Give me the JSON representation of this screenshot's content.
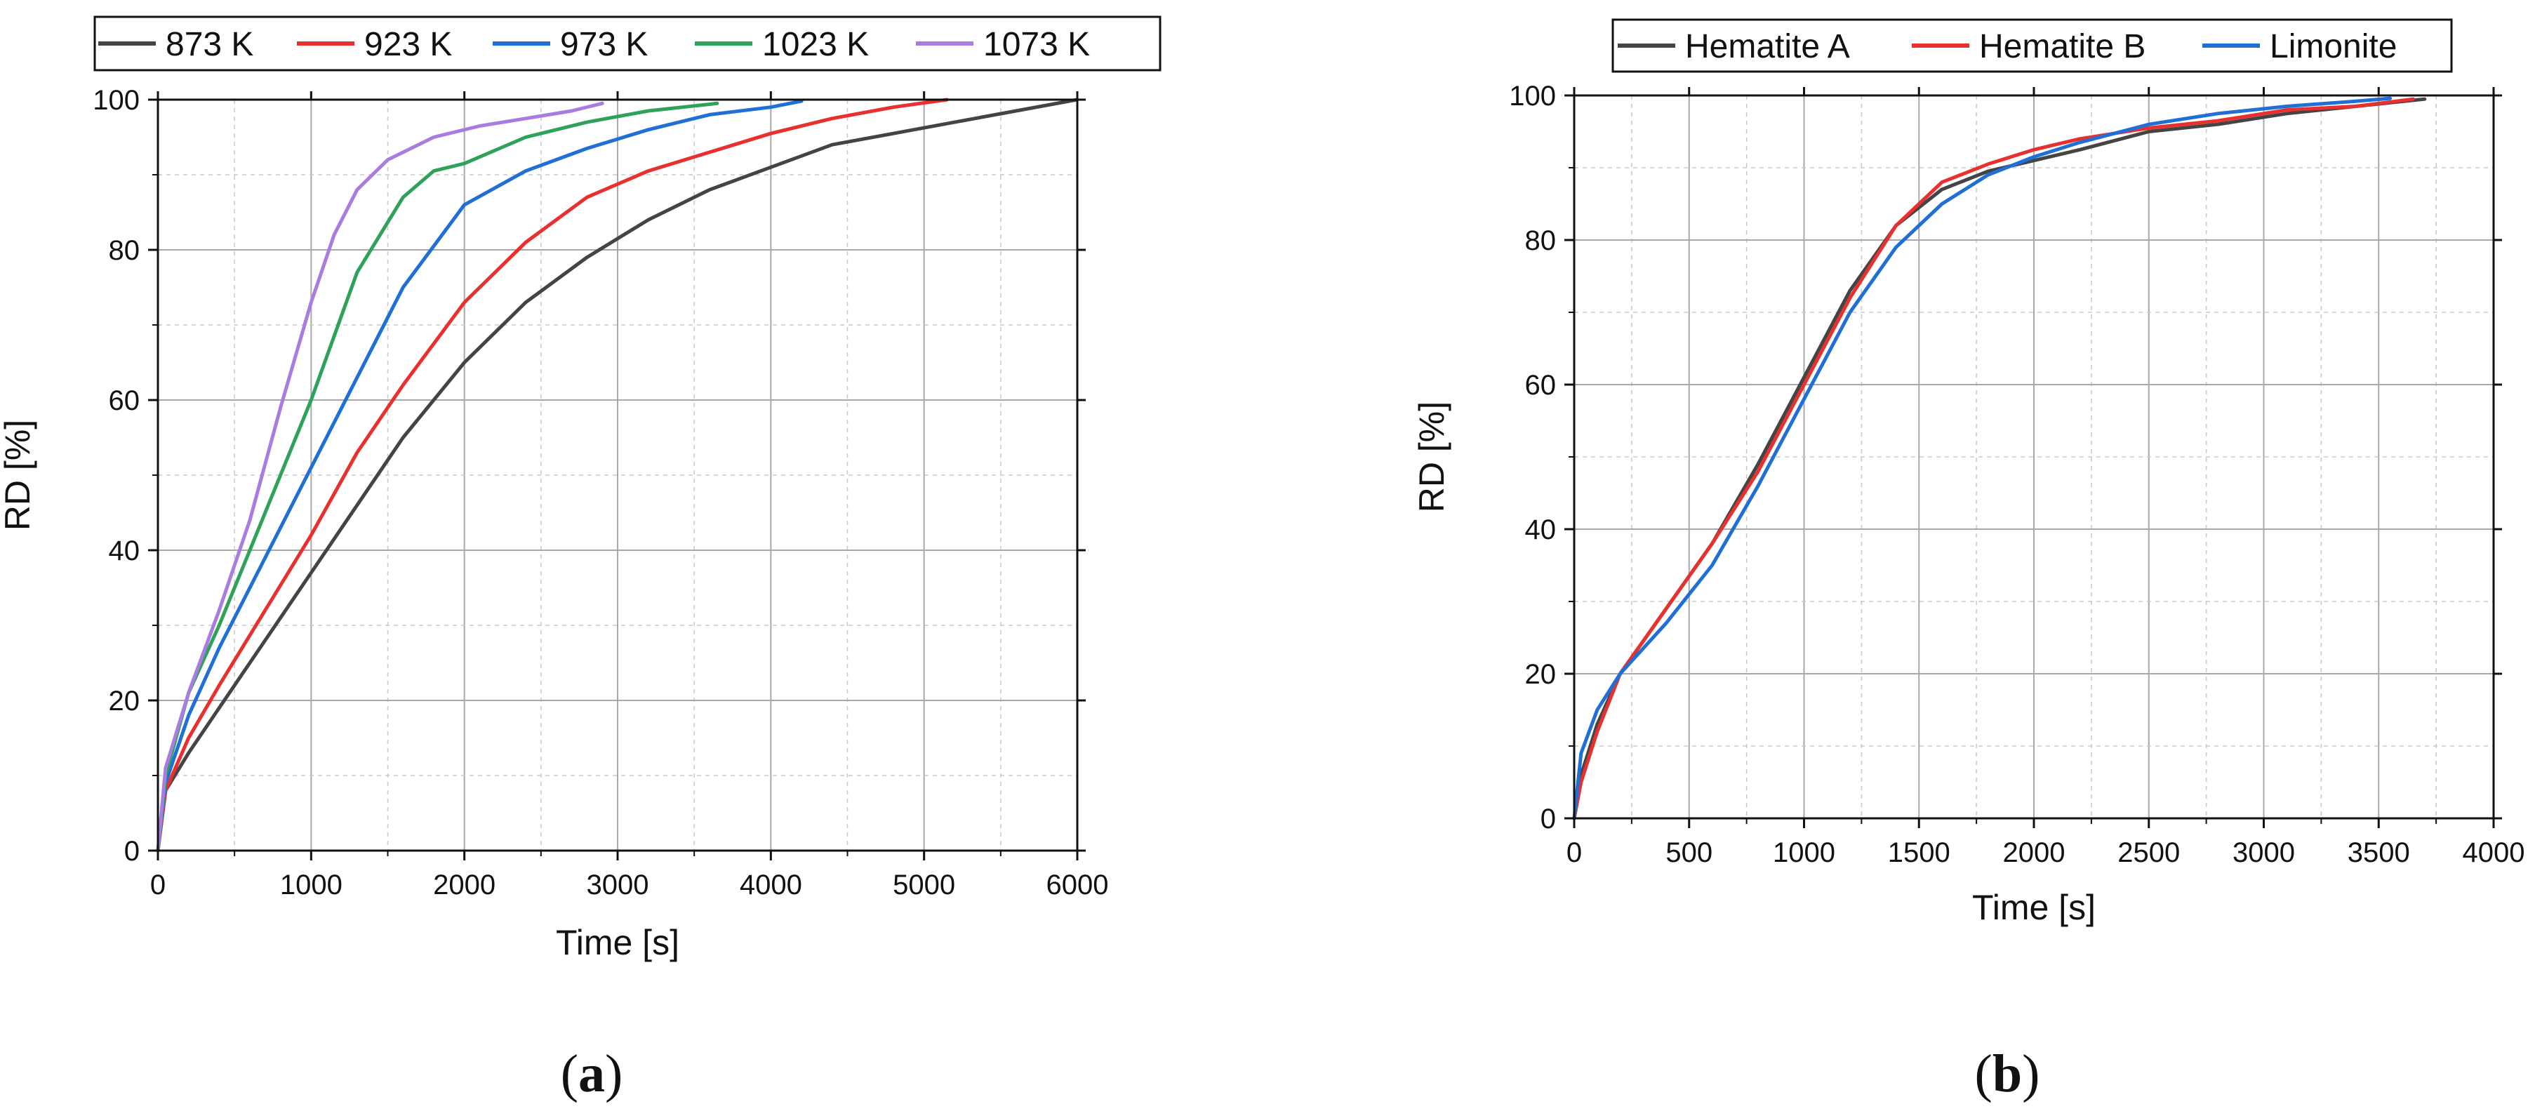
{
  "chart_data": [
    {
      "type": "line",
      "panel_label": {
        "open": "(",
        "letter": "a",
        "close": ")"
      },
      "xlabel": "Time [s]",
      "ylabel": "RD [%]",
      "xlim": [
        0,
        6000
      ],
      "ylim": [
        0,
        100
      ],
      "xticks": [
        0,
        1000,
        2000,
        3000,
        4000,
        5000,
        6000
      ],
      "yticks": [
        0,
        20,
        40,
        60,
        80,
        100
      ],
      "grid": true,
      "legend_position": "top",
      "series": [
        {
          "name": "873 K",
          "color": "#444444",
          "x": [
            0,
            50,
            200,
            400,
            700,
            1000,
            1300,
            1600,
            2000,
            2400,
            2800,
            3200,
            3600,
            4000,
            4400,
            4800,
            5200,
            5600,
            6000
          ],
          "y": [
            0,
            8,
            13,
            19,
            28,
            37,
            46,
            55,
            65,
            73,
            79,
            84,
            88,
            91,
            94,
            95.5,
            97,
            98.5,
            100
          ]
        },
        {
          "name": "923 K",
          "color": "#e8302e",
          "x": [
            0,
            50,
            200,
            400,
            700,
            1000,
            1300,
            1600,
            2000,
            2400,
            2800,
            3200,
            3600,
            4000,
            4400,
            4800,
            5150
          ],
          "y": [
            0,
            8,
            15,
            22,
            32,
            42,
            53,
            62,
            73,
            81,
            87,
            90.5,
            93,
            95.5,
            97.5,
            99,
            100
          ]
        },
        {
          "name": "973 K",
          "color": "#1f6fd6",
          "x": [
            0,
            50,
            200,
            400,
            700,
            1000,
            1300,
            1600,
            2000,
            2400,
            2800,
            3200,
            3600,
            4000,
            4200
          ],
          "y": [
            0,
            9,
            18,
            27,
            39,
            51,
            63,
            75,
            86,
            90.5,
            93.5,
            96,
            98,
            99,
            99.8
          ]
        },
        {
          "name": "1023 K",
          "color": "#2fa25a",
          "x": [
            0,
            50,
            200,
            400,
            700,
            1000,
            1300,
            1600,
            1800,
            2000,
            2400,
            2800,
            3200,
            3650
          ],
          "y": [
            0,
            10,
            21,
            30,
            45,
            60,
            77,
            87,
            90.5,
            91.5,
            95,
            97,
            98.5,
            99.5
          ]
        },
        {
          "name": "1073 K",
          "color": "#a97de0",
          "x": [
            0,
            50,
            200,
            400,
            600,
            800,
            1000,
            1150,
            1300,
            1500,
            1800,
            2100,
            2400,
            2700,
            2900
          ],
          "y": [
            0,
            11,
            21,
            32,
            44,
            59,
            73,
            82,
            88,
            92,
            95,
            96.5,
            97.5,
            98.5,
            99.5
          ]
        }
      ]
    },
    {
      "type": "line",
      "panel_label": {
        "open": "(",
        "letter": "b",
        "close": ")"
      },
      "xlabel": "Time [s]",
      "ylabel": "RD [%]",
      "xlim": [
        0,
        4000
      ],
      "ylim": [
        0,
        100
      ],
      "xticks": [
        0,
        500,
        1000,
        1500,
        2000,
        2500,
        3000,
        3500,
        4000
      ],
      "yticks": [
        0,
        20,
        40,
        60,
        80,
        100
      ],
      "grid": true,
      "legend_position": "top",
      "series": [
        {
          "name": "Hematite A",
          "color": "#444444",
          "x": [
            0,
            30,
            100,
            200,
            400,
            600,
            800,
            1000,
            1200,
            1400,
            1600,
            1800,
            2000,
            2200,
            2500,
            2800,
            3100,
            3400,
            3700
          ],
          "y": [
            0,
            6,
            13,
            20,
            29,
            38,
            49,
            61,
            73,
            82,
            87,
            89.5,
            91,
            92.5,
            95,
            96,
            97.5,
            98.5,
            99.5
          ]
        },
        {
          "name": "Hematite B",
          "color": "#e8302e",
          "x": [
            0,
            30,
            100,
            200,
            400,
            600,
            800,
            1000,
            1200,
            1400,
            1600,
            1800,
            2000,
            2200,
            2500,
            2800,
            3100,
            3400,
            3650
          ],
          "y": [
            0,
            5,
            12,
            20,
            29,
            38,
            48,
            60,
            72,
            82,
            88,
            90.5,
            92.5,
            94,
            95.5,
            96.5,
            98,
            98.5,
            99.5
          ]
        },
        {
          "name": "Limonite",
          "color": "#1f6fd6",
          "x": [
            0,
            30,
            100,
            200,
            400,
            600,
            800,
            1000,
            1200,
            1400,
            1600,
            1800,
            2000,
            2200,
            2500,
            2800,
            3100,
            3400,
            3550
          ],
          "y": [
            0,
            9,
            15,
            20,
            27,
            35,
            46,
            58,
            70,
            79,
            85,
            89,
            91.5,
            93.5,
            96,
            97.5,
            98.5,
            99.2,
            99.6
          ]
        }
      ]
    }
  ]
}
